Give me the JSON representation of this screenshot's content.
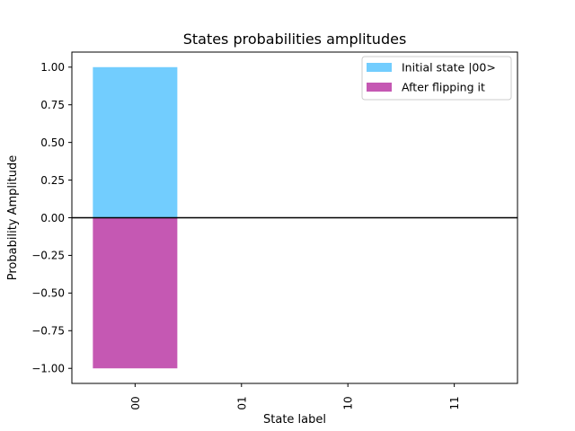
{
  "chart_data": {
    "type": "bar",
    "title": "States probabilities amplitudes",
    "xlabel": "State label",
    "ylabel": "Probability Amplitude",
    "categories": [
      "00",
      "01",
      "10",
      "11"
    ],
    "series": [
      {
        "name": "Initial state |00>",
        "values": [
          1,
          0,
          0,
          0
        ],
        "color": "#72cdfe"
      },
      {
        "name": "After flipping it",
        "values": [
          -1,
          0,
          0,
          0
        ],
        "color": "#c558b3"
      }
    ],
    "ylim": [
      -1.1,
      1.1
    ],
    "yticks": [
      "1.00",
      "0.75",
      "0.50",
      "0.25",
      "0.00",
      "−0.25",
      "−0.50",
      "−0.75",
      "−1.00"
    ],
    "ytick_values": [
      1.0,
      0.75,
      0.5,
      0.25,
      0.0,
      -0.25,
      -0.5,
      -0.75,
      -1.0
    ],
    "zero_line": true,
    "grid": false,
    "legend_position": "upper right",
    "xtick_rotation": "vertical"
  }
}
